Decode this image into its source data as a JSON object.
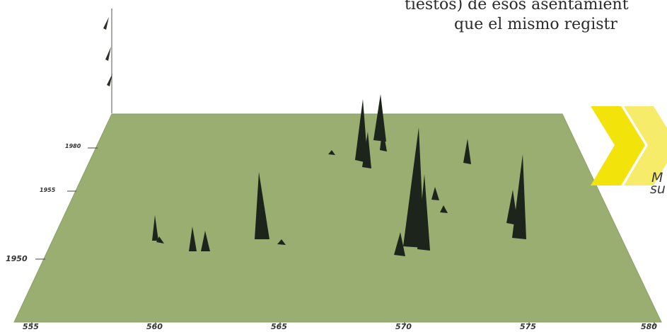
{
  "document": {
    "line1": "tiestos) de esos asentamient",
    "line2": "que el mismo registr"
  },
  "figure": {
    "x_ticks": [
      "555",
      "560",
      "565",
      "570",
      "575",
      "580"
    ],
    "y_ticks": [
      "1980",
      "1955",
      "1950"
    ],
    "surface_color": "#9aae72",
    "spike_color": "#1c241c"
  },
  "logo": {
    "colors": [
      "#f2e30a",
      "#f6ec6a"
    ],
    "text_line1": "M",
    "text_line2": "su"
  }
}
